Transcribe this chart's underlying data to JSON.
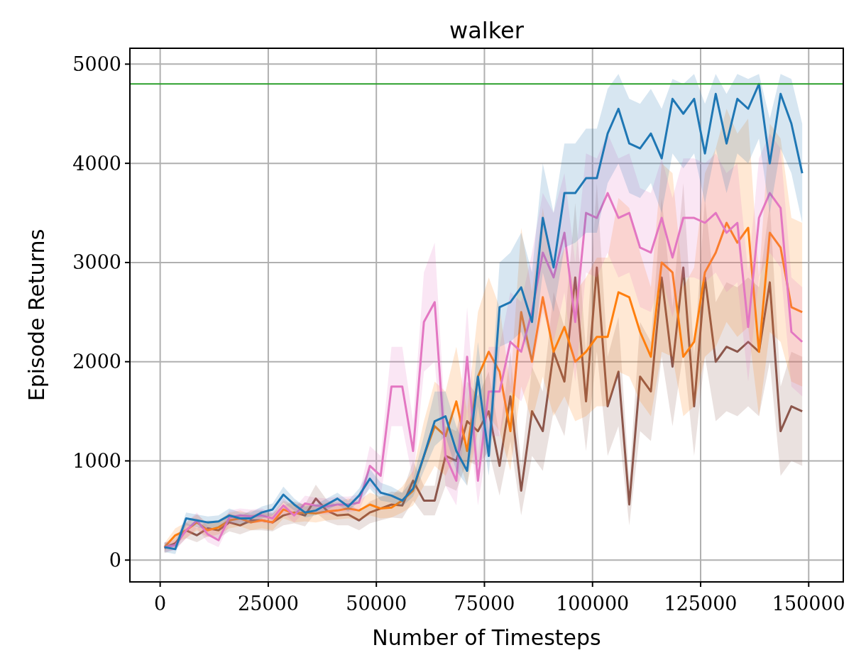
{
  "chart_data": {
    "type": "line",
    "title": "walker",
    "xlabel": "Number of Timesteps",
    "ylabel": "Episode Returns",
    "x": [
      1000,
      3500,
      6000,
      8500,
      11000,
      13500,
      16000,
      18500,
      21000,
      23500,
      26000,
      28500,
      31000,
      33500,
      36000,
      38500,
      41000,
      43500,
      46000,
      48500,
      51000,
      53500,
      56000,
      58500,
      61000,
      63500,
      66000,
      68500,
      71000,
      73500,
      76000,
      78500,
      81000,
      83500,
      86000,
      88500,
      91000,
      93500,
      96000,
      98500,
      101000,
      103500,
      106000,
      108500,
      111000,
      113500,
      116000,
      118500,
      121000,
      123500,
      126000,
      128500,
      131000,
      133500,
      136000,
      138500,
      141000,
      143500,
      146000,
      148500
    ],
    "series": [
      {
        "color": "#8c564b",
        "values": [
          120,
          170,
          300,
          250,
          320,
          300,
          380,
          350,
          400,
          400,
          380,
          450,
          480,
          450,
          620,
          500,
          450,
          460,
          400,
          480,
          520,
          560,
          550,
          800,
          600,
          600,
          1050,
          1000,
          1400,
          1300,
          1500,
          950,
          1650,
          700,
          1500,
          1300,
          2100,
          1800,
          2850,
          1600,
          2950,
          1550,
          1900,
          560,
          1850,
          1700,
          2850,
          1950,
          2950,
          1550,
          2850,
          2000,
          2150,
          2100,
          2200,
          2100,
          2800,
          1300,
          1550,
          1500
        ],
        "lower": [
          70,
          110,
          220,
          180,
          240,
          220,
          290,
          260,
          300,
          300,
          290,
          350,
          370,
          340,
          480,
          390,
          350,
          350,
          300,
          370,
          400,
          430,
          420,
          600,
          450,
          450,
          750,
          700,
          1000,
          950,
          1100,
          650,
          1200,
          450,
          1050,
          900,
          1500,
          1250,
          2050,
          1100,
          2100,
          1050,
          1350,
          350,
          1300,
          1200,
          2050,
          1350,
          2100,
          1050,
          2050,
          1400,
          1500,
          1450,
          1550,
          1450,
          2000,
          850,
          1000,
          950
        ],
        "upper": [
          170,
          230,
          380,
          320,
          400,
          380,
          470,
          440,
          500,
          500,
          470,
          550,
          590,
          560,
          760,
          610,
          550,
          570,
          500,
          590,
          640,
          690,
          680,
          1000,
          750,
          750,
          1350,
          1300,
          1800,
          1650,
          1900,
          1250,
          2100,
          950,
          1950,
          1700,
          2700,
          2350,
          3600,
          2100,
          3800,
          2050,
          2450,
          800,
          2400,
          2200,
          3650,
          2550,
          3800,
          2050,
          3650,
          2600,
          2800,
          2750,
          2850,
          2750,
          3600,
          1750,
          2100,
          2050
        ]
      },
      {
        "color": "#ff7f0e",
        "values": [
          130,
          250,
          300,
          380,
          300,
          330,
          400,
          420,
          380,
          400,
          380,
          510,
          470,
          480,
          470,
          490,
          500,
          520,
          500,
          560,
          520,
          530,
          600,
          700,
          1050,
          1350,
          1250,
          1600,
          1100,
          1850,
          2100,
          1900,
          1300,
          2500,
          2000,
          2650,
          2100,
          2350,
          2000,
          2100,
          2250,
          2250,
          2700,
          2650,
          2300,
          2050,
          3000,
          2900,
          2050,
          2200,
          2900,
          3100,
          3400,
          3200,
          3350,
          2100,
          3300,
          3150,
          2550,
          2500
        ],
        "lower": [
          90,
          180,
          220,
          300,
          230,
          260,
          320,
          340,
          300,
          320,
          300,
          420,
          380,
          390,
          380,
          400,
          410,
          420,
          400,
          450,
          420,
          430,
          480,
          550,
          750,
          950,
          850,
          1100,
          750,
          1300,
          1450,
          1300,
          900,
          1750,
          1400,
          1850,
          1450,
          1650,
          1400,
          1450,
          1550,
          1550,
          1900,
          1850,
          1600,
          1450,
          2100,
          2050,
          1450,
          1550,
          2050,
          2150,
          2400,
          2250,
          2350,
          1450,
          2300,
          2200,
          1800,
          1750
        ],
        "upper": [
          170,
          320,
          380,
          460,
          370,
          400,
          480,
          500,
          460,
          480,
          460,
          600,
          560,
          570,
          560,
          580,
          590,
          620,
          600,
          680,
          640,
          650,
          740,
          900,
          1400,
          1800,
          1700,
          2150,
          1500,
          2500,
          2850,
          2550,
          1750,
          3350,
          2700,
          3550,
          2850,
          3150,
          2700,
          2850,
          3050,
          3050,
          3650,
          3550,
          3100,
          2750,
          4000,
          3900,
          2750,
          2950,
          3900,
          4150,
          4550,
          4300,
          4450,
          2850,
          4400,
          4250,
          3450,
          3400
        ]
      },
      {
        "color": "#e377c2",
        "values": [
          130,
          150,
          300,
          400,
          260,
          200,
          430,
          450,
          440,
          450,
          420,
          550,
          450,
          570,
          550,
          540,
          560,
          560,
          580,
          950,
          850,
          1750,
          1750,
          1100,
          2400,
          2600,
          1050,
          800,
          2050,
          800,
          1700,
          1700,
          2200,
          2100,
          2500,
          3100,
          2850,
          3300,
          2400,
          3500,
          3450,
          3700,
          3450,
          3500,
          3150,
          3100,
          3450,
          3050,
          3450,
          3450,
          3400,
          3500,
          3300,
          3400,
          2350,
          3450,
          3700,
          3550,
          2300,
          2200
        ],
        "lower": [
          80,
          100,
          220,
          320,
          180,
          130,
          360,
          380,
          370,
          380,
          360,
          470,
          380,
          490,
          470,
          460,
          480,
          480,
          500,
          750,
          650,
          1350,
          1350,
          800,
          1900,
          2000,
          750,
          550,
          1550,
          550,
          1250,
          1250,
          1700,
          1600,
          1900,
          2500,
          2200,
          2700,
          1800,
          2900,
          2850,
          3100,
          2850,
          2900,
          2550,
          2500,
          2850,
          2450,
          2850,
          2850,
          2800,
          2900,
          2700,
          2800,
          1800,
          2850,
          3100,
          2950,
          1750,
          1650
        ],
        "upper": [
          180,
          200,
          380,
          480,
          340,
          280,
          500,
          520,
          510,
          520,
          480,
          630,
          520,
          650,
          630,
          620,
          640,
          640,
          660,
          1150,
          1050,
          2150,
          2150,
          1400,
          2900,
          3200,
          1350,
          1050,
          2550,
          1050,
          2150,
          2150,
          2700,
          2600,
          3100,
          3700,
          3500,
          3900,
          3000,
          4100,
          4050,
          4300,
          4050,
          4100,
          3750,
          3700,
          4050,
          3650,
          4050,
          4050,
          4000,
          4100,
          3900,
          4000,
          2900,
          4050,
          4300,
          4150,
          2850,
          2750
        ]
      },
      {
        "color": "#1f77b4",
        "values": [
          130,
          110,
          420,
          400,
          380,
          390,
          450,
          420,
          420,
          480,
          510,
          660,
          560,
          480,
          500,
          560,
          620,
          540,
          650,
          820,
          680,
          650,
          600,
          720,
          1050,
          1400,
          1450,
          1100,
          900,
          1850,
          1050,
          2550,
          2600,
          2750,
          2400,
          3450,
          2950,
          3700,
          3700,
          3850,
          3850,
          4300,
          4550,
          4200,
          4150,
          4300,
          4050,
          4650,
          4500,
          4650,
          4100,
          4700,
          4200,
          4650,
          4550,
          4800,
          4000,
          4700,
          4400,
          3900
        ],
        "lower": [
          80,
          60,
          350,
          330,
          320,
          330,
          380,
          360,
          370,
          420,
          450,
          580,
          500,
          430,
          450,
          500,
          560,
          490,
          590,
          720,
          600,
          580,
          540,
          640,
          900,
          1150,
          1250,
          900,
          750,
          1550,
          850,
          2150,
          2200,
          2300,
          2000,
          2900,
          2500,
          3150,
          3200,
          3300,
          3300,
          3800,
          4000,
          3700,
          3650,
          3800,
          3500,
          4100,
          3950,
          4100,
          3600,
          4150,
          3700,
          4100,
          4000,
          4250,
          3500,
          4150,
          3900,
          3400
        ],
        "upper": [
          180,
          160,
          480,
          460,
          440,
          450,
          520,
          480,
          480,
          540,
          570,
          740,
          620,
          540,
          560,
          620,
          680,
          600,
          720,
          920,
          780,
          740,
          680,
          820,
          1250,
          1700,
          1700,
          1350,
          1100,
          2200,
          1300,
          3000,
          3100,
          3300,
          2900,
          4000,
          3500,
          4200,
          4200,
          4350,
          4350,
          4750,
          4900,
          4650,
          4600,
          4750,
          4550,
          4850,
          4800,
          4900,
          4600,
          4900,
          4700,
          4900,
          4850,
          4900,
          4450,
          4900,
          4850,
          4400
        ]
      }
    ],
    "ref_lines": [
      {
        "axis": "y",
        "value": 4800,
        "color": "#2ca02c"
      }
    ],
    "xlim": [
      -7000,
      158000
    ],
    "ylim": [
      -220,
      5160
    ],
    "xticks": [
      0,
      25000,
      50000,
      75000,
      100000,
      125000,
      150000
    ],
    "yticks": [
      0,
      1000,
      2000,
      3000,
      4000,
      5000
    ],
    "grid": true
  }
}
